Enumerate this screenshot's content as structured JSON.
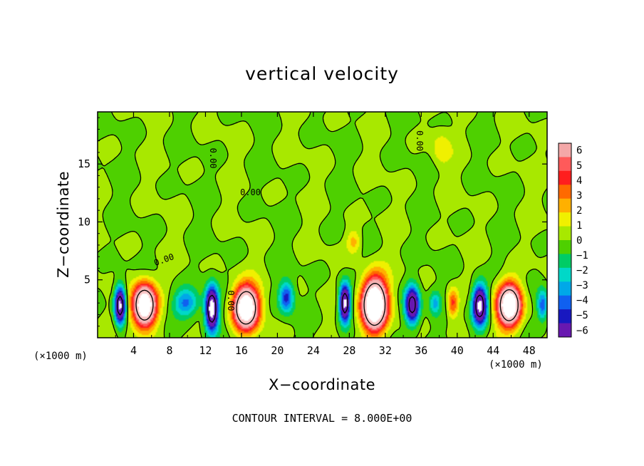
{
  "chart_data": {
    "type": "heatmap",
    "title": "vertical velocity",
    "xlabel": "X−coordinate",
    "ylabel": "Z−coordinate",
    "x_unit_left": "(×1000 m)",
    "x_unit_right": "(×1000 m)",
    "xlim": [
      0,
      50
    ],
    "ylim": [
      0,
      19.5
    ],
    "x_ticks": [
      4,
      8,
      12,
      16,
      20,
      24,
      28,
      32,
      36,
      40,
      44,
      48
    ],
    "y_ticks": [
      5,
      10,
      15
    ],
    "grid": false,
    "colorbar": {
      "placement": "right",
      "levels": [
        6,
        5,
        4,
        3,
        2,
        1,
        0,
        -1,
        -2,
        -3,
        -4,
        -5,
        -6
      ],
      "colors": [
        "#f4a8a8",
        "#ff5a5a",
        "#ff1e1e",
        "#ff6a00",
        "#ffb000",
        "#f0f000",
        "#a8e800",
        "#4ed000",
        "#00cc66",
        "#00d8c8",
        "#00a8e8",
        "#1060f0",
        "#1818c0",
        "#6818b0"
      ]
    },
    "contour_interval_text": "CONTOUR INTERVAL = 8.000E+00",
    "contour_labels": [
      "0.00",
      "0.00",
      "0.00",
      "0.00",
      "0.00"
    ],
    "updrafts": [
      {
        "x": 5.2,
        "z": 2.8,
        "w": 14,
        "sx": 1.3,
        "sz": 1.8
      },
      {
        "x": 16.5,
        "z": 2.6,
        "w": 14,
        "sx": 1.4,
        "sz": 1.8
      },
      {
        "x": 30.8,
        "z": 2.9,
        "w": 16,
        "sx": 1.4,
        "sz": 2.2
      },
      {
        "x": 39.5,
        "z": 3.0,
        "w": 4.5,
        "sx": 0.6,
        "sz": 1.2
      },
      {
        "x": 45.8,
        "z": 2.8,
        "w": 14,
        "sx": 1.3,
        "sz": 1.8
      },
      {
        "x": 28.5,
        "z": 8.3,
        "w": 2.5,
        "sx": 0.8,
        "sz": 1.0
      },
      {
        "x": 38.2,
        "z": 16.3,
        "w": 1.8,
        "sx": 1.0,
        "sz": 1.5
      }
    ],
    "downdrafts": [
      {
        "x": 2.5,
        "z": 2.8,
        "w": -11,
        "sx": 0.6,
        "sz": 1.6
      },
      {
        "x": 9.8,
        "z": 3.0,
        "w": -4.5,
        "sx": 1.4,
        "sz": 1.2
      },
      {
        "x": 12.7,
        "z": 2.5,
        "w": -12,
        "sx": 0.7,
        "sz": 1.8
      },
      {
        "x": 21.0,
        "z": 3.5,
        "w": -5.5,
        "sx": 0.8,
        "sz": 1.3
      },
      {
        "x": 27.5,
        "z": 3.0,
        "w": -11,
        "sx": 0.6,
        "sz": 1.6
      },
      {
        "x": 35.0,
        "z": 2.8,
        "w": -10,
        "sx": 0.8,
        "sz": 1.6
      },
      {
        "x": 37.5,
        "z": 3.0,
        "w": -3,
        "sx": 0.6,
        "sz": 1.0
      },
      {
        "x": 42.5,
        "z": 2.8,
        "w": -11,
        "sx": 0.8,
        "sz": 1.7
      },
      {
        "x": 49.5,
        "z": 2.8,
        "w": -5,
        "sx": 0.6,
        "sz": 1.3
      }
    ]
  }
}
